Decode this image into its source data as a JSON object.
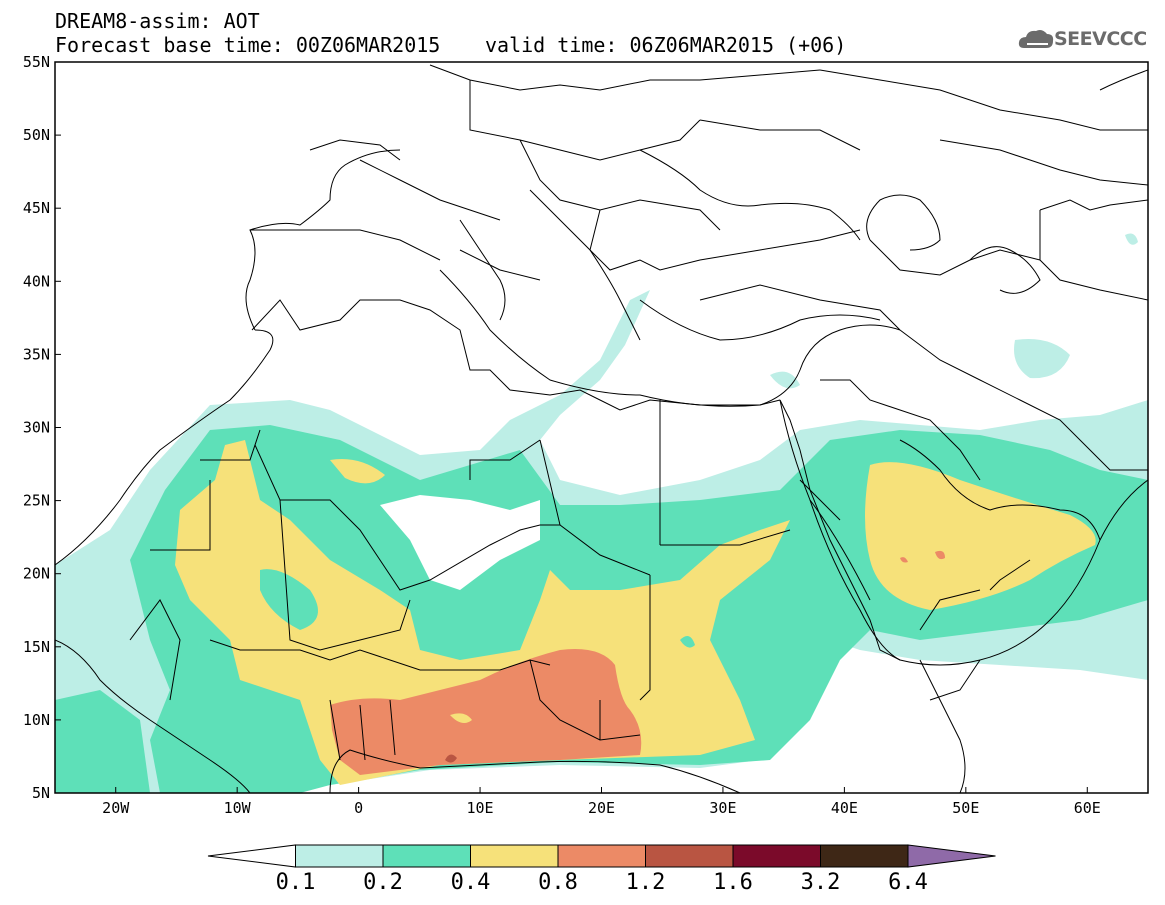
{
  "header": {
    "title_line1": "DREAM8-assim: AOT",
    "title_line2_left": "Forecast base time: 00Z06MAR2015",
    "title_line2_right": "valid time: 06Z06MAR2015 (+06)"
  },
  "logo": {
    "text": "SEEVCCC",
    "icon": "cloud-logo-icon"
  },
  "axes": {
    "lat_ticks": [
      "55N",
      "50N",
      "45N",
      "40N",
      "35N",
      "30N",
      "25N",
      "20N",
      "15N",
      "10N",
      "5N"
    ],
    "lon_ticks": [
      "20W",
      "10W",
      "0",
      "10E",
      "20E",
      "30E",
      "40E",
      "50E",
      "60E"
    ],
    "lon_range": [
      -25,
      65
    ],
    "lat_range": [
      5,
      55
    ]
  },
  "legend": {
    "labels": [
      "0.1",
      "0.2",
      "0.4",
      "0.8",
      "1.2",
      "1.6",
      "3.2",
      "6.4"
    ],
    "colors": [
      "#ffffff",
      "#bdeee6",
      "#5ee0b8",
      "#f6e17a",
      "#ec8a66",
      "#b95542",
      "#7b0a2a",
      "#3e2716",
      "#8f6aa8"
    ]
  }
}
